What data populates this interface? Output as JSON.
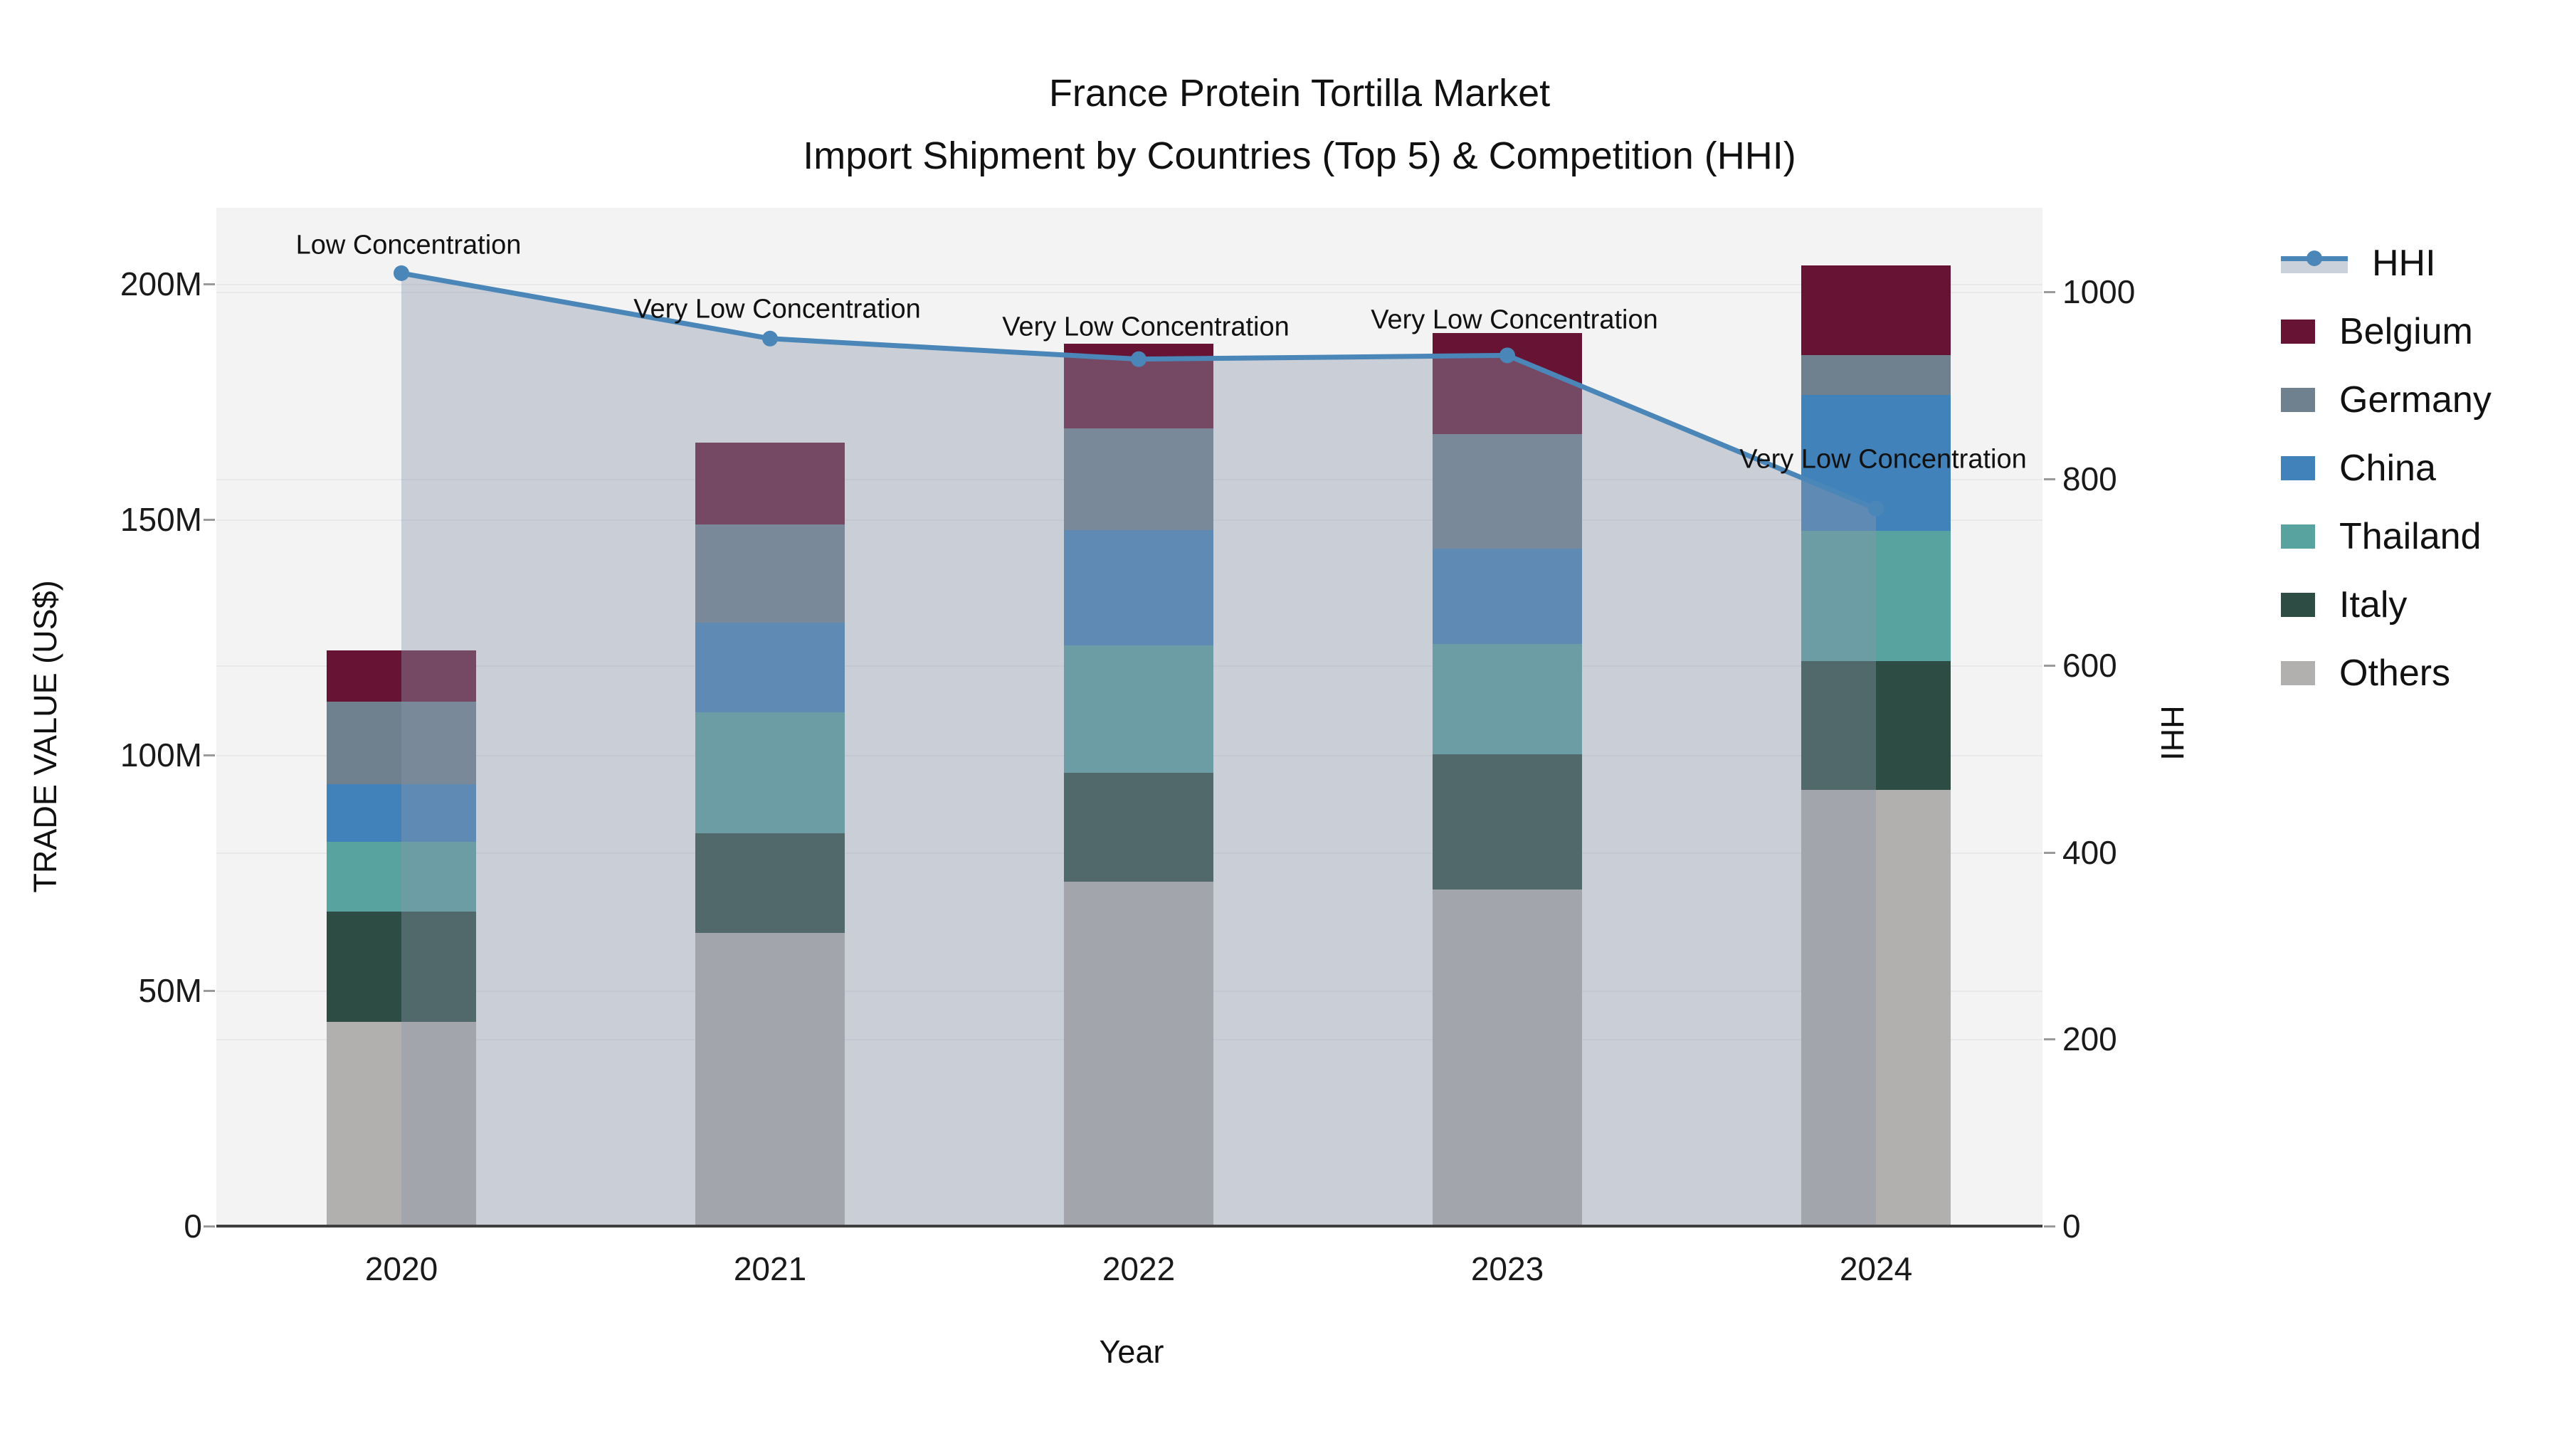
{
  "title": {
    "line1": "France Protein Tortilla Market",
    "line2": "Import Shipment by Countries (Top 5) & Competition (HHI)"
  },
  "axes": {
    "x_title": "Year",
    "y_left_title": "TRADE VALUE (US$)",
    "y_right_title": "HHI",
    "y_left_ticks": [
      {
        "label": "0",
        "value": 0
      },
      {
        "label": "50M",
        "value": 50
      },
      {
        "label": "100M",
        "value": 100
      },
      {
        "label": "150M",
        "value": 150
      },
      {
        "label": "200M",
        "value": 200
      }
    ],
    "y_right_ticks": [
      {
        "label": "0",
        "value": 0
      },
      {
        "label": "200",
        "value": 200
      },
      {
        "label": "400",
        "value": 400
      },
      {
        "label": "600",
        "value": 600
      },
      {
        "label": "800",
        "value": 800
      },
      {
        "label": "1000",
        "value": 1000
      }
    ],
    "y_left_max": 216.2,
    "y_right_max": 1090
  },
  "chart_data": {
    "type": "bar",
    "subtype": "stacked-bars-with-line",
    "categories": [
      "2020",
      "2021",
      "2022",
      "2023",
      "2024"
    ],
    "series": [
      {
        "name": "Others",
        "color": "#b1b0ae",
        "values": [
          43.4,
          62.2,
          73.1,
          71.5,
          92.6
        ]
      },
      {
        "name": "Italy",
        "color": "#2c4c44",
        "values": [
          23.4,
          21.2,
          23.1,
          28.7,
          27.3
        ]
      },
      {
        "name": "Thailand",
        "color": "#58a2a0",
        "values": [
          14.8,
          25.7,
          27.1,
          23.4,
          27.7
        ]
      },
      {
        "name": "China",
        "color": "#4182ba",
        "values": [
          12.2,
          19.0,
          24.4,
          20.2,
          28.8
        ]
      },
      {
        "name": "Germany",
        "color": "#6f808e",
        "values": [
          17.5,
          20.8,
          21.6,
          24.3,
          8.6
        ]
      },
      {
        "name": "Belgium",
        "color": "#671434",
        "values": [
          10.9,
          17.4,
          18.0,
          21.5,
          18.9
        ]
      }
    ],
    "bar_totals": [
      122.2,
      166.3,
      187.3,
      189.6,
      203.9
    ],
    "line_series": {
      "name": "HHI",
      "axis": "right",
      "color": "#4a86b8",
      "area_fill": "rgba(141,151,170,0.40)",
      "values": [
        1020,
        950,
        928,
        932,
        768
      ]
    },
    "annotations": [
      {
        "year_index": 0,
        "text": "Low Concentration",
        "dy": -39
      },
      {
        "year_index": 1,
        "text": "Very Low Concentration",
        "dy": -41
      },
      {
        "year_index": 2,
        "text": "Very Low Concentration",
        "dy": -45
      },
      {
        "year_index": 3,
        "text": "Very Low Concentration",
        "dy": -49
      },
      {
        "year_index": 4,
        "text": "Very Low Concentration",
        "dy": -69
      }
    ],
    "title": "France Protein Tortilla Market",
    "subtitle": "Import Shipment by Countries (Top 5) & Competition (HHI)",
    "xlabel": "Year",
    "ylabel_left": "TRADE VALUE (US$)",
    "ylabel_right": "HHI",
    "ylim_left": [
      0,
      216.2
    ],
    "ylim_right": [
      0,
      1090
    ],
    "grid": true,
    "legend_position": "right"
  },
  "legend": {
    "items": [
      {
        "label": "HHI",
        "type": "line",
        "color": "#4a86b8"
      },
      {
        "label": "Belgium",
        "type": "box",
        "color": "#671434"
      },
      {
        "label": "Germany",
        "type": "box",
        "color": "#6f808e"
      },
      {
        "label": "China",
        "type": "box",
        "color": "#4182ba"
      },
      {
        "label": "Thailand",
        "type": "box",
        "color": "#58a2a0"
      },
      {
        "label": "Italy",
        "type": "box",
        "color": "#2c4c44"
      },
      {
        "label": "Others",
        "type": "box",
        "color": "#b1b0ae"
      }
    ]
  },
  "colors": {
    "plot_background": "#f4f3f4",
    "page_background": "#ffffff",
    "gridline": "#e8e8eb",
    "axis_line": "#3f3f3f",
    "hhi_line": "#4a86b8",
    "hhi_area": "rgba(141,151,170,0.40)",
    "text": "#111111"
  }
}
